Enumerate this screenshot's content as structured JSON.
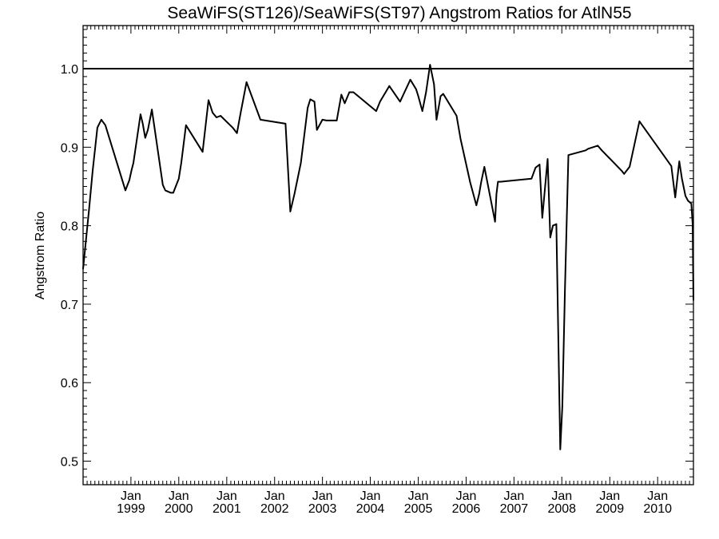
{
  "chart_data": {
    "type": "line",
    "title": "SeaWiFS(ST126)/SeaWiFS(ST97)  Angstrom Ratios for AtlN55",
    "xlabel": "",
    "ylabel": "Angstrom Ratio",
    "xlim": [
      "1998-01-01",
      "2010-10-01"
    ],
    "ylim": [
      0.47,
      1.055
    ],
    "yticks": [
      0.5,
      0.6,
      0.7,
      0.8,
      0.9,
      1.0
    ],
    "ytick_labels": [
      "0.5",
      "0.6",
      "0.7",
      "0.8",
      "0.9",
      "1.0"
    ],
    "xticks": [
      {
        "date": "1999-01-01",
        "month": "Jan",
        "year": "1999"
      },
      {
        "date": "2000-01-01",
        "month": "Jan",
        "year": "2000"
      },
      {
        "date": "2001-01-01",
        "month": "Jan",
        "year": "2001"
      },
      {
        "date": "2002-01-01",
        "month": "Jan",
        "year": "2002"
      },
      {
        "date": "2003-01-01",
        "month": "Jan",
        "year": "2003"
      },
      {
        "date": "2004-01-01",
        "month": "Jan",
        "year": "2004"
      },
      {
        "date": "2005-01-01",
        "month": "Jan",
        "year": "2005"
      },
      {
        "date": "2006-01-01",
        "month": "Jan",
        "year": "2006"
      },
      {
        "date": "2007-01-01",
        "month": "Jan",
        "year": "2007"
      },
      {
        "date": "2008-01-01",
        "month": "Jan",
        "year": "2008"
      },
      {
        "date": "2009-01-01",
        "month": "Jan",
        "year": "2009"
      },
      {
        "date": "2010-01-01",
        "month": "Jan",
        "year": "2010"
      }
    ],
    "minor_ticks": "monthly",
    "grid": false,
    "reference_lines": [
      {
        "axis": "y",
        "value": 1.0
      }
    ],
    "series": [
      {
        "x": [
          "1998-01-01",
          "1998-02-15",
          "1998-03-15",
          "1998-04-20",
          "1998-05-20",
          "1998-06-20",
          "1998-11-20",
          "1998-12-20",
          "1999-01-05",
          "1999-01-20",
          "1999-03-15",
          "1999-04-01",
          "1999-04-20",
          "1999-05-10",
          "1999-06-10",
          "1999-09-01",
          "1999-09-20",
          "1999-11-01",
          "1999-11-20",
          "2000-01-01",
          "2000-01-20",
          "2000-02-25",
          "2000-07-01",
          "2000-08-15",
          "2000-09-15",
          "2000-10-15",
          "2000-11-15",
          "2001-02-15",
          "2001-03-20",
          "2001-04-15",
          "2001-06-01",
          "2001-09-15",
          "2002-03-25",
          "2002-05-01",
          "2002-06-01",
          "2002-07-20",
          "2002-09-10",
          "2002-09-30",
          "2002-11-01",
          "2002-11-20",
          "2003-01-01",
          "2003-02-01",
          "2003-03-01",
          "2003-03-25",
          "2003-04-20",
          "2003-05-25",
          "2003-06-20",
          "2003-07-25",
          "2003-08-25",
          "2004-02-15",
          "2004-03-15",
          "2004-05-25",
          "2004-08-15",
          "2004-11-01",
          "2004-12-15",
          "2005-01-01",
          "2005-02-01",
          "2005-03-01",
          "2005-04-01",
          "2005-05-01",
          "2005-05-20",
          "2005-06-20",
          "2005-07-10",
          "2005-10-20",
          "2005-11-20",
          "2006-02-01",
          "2006-03-20",
          "2006-04-10",
          "2006-04-25",
          "2006-05-20",
          "2006-08-10",
          "2006-08-20",
          "2006-09-01",
          "2006-09-20",
          "2007-05-15",
          "2007-06-15",
          "2007-07-15",
          "2007-08-05",
          "2007-09-15",
          "2007-10-05",
          "2007-10-25",
          "2007-11-20",
          "2007-12-20",
          "2008-01-05",
          "2008-01-25",
          "2008-02-20",
          "2008-07-01",
          "2008-07-20",
          "2008-10-01",
          "2008-11-01",
          "2009-04-01",
          "2009-04-20",
          "2009-06-01",
          "2009-08-15",
          "2010-04-15",
          "2010-05-15",
          "2010-06-15",
          "2010-07-05",
          "2010-08-01",
          "2010-08-20",
          "2010-09-15",
          "2010-09-25",
          "2010-10-01"
        ],
        "y": [
          0.745,
          0.82,
          0.87,
          0.925,
          0.935,
          0.928,
          0.845,
          0.858,
          0.87,
          0.88,
          0.942,
          0.93,
          0.912,
          0.922,
          0.948,
          0.852,
          0.845,
          0.842,
          0.842,
          0.86,
          0.88,
          0.928,
          0.894,
          0.96,
          0.944,
          0.938,
          0.94,
          0.925,
          0.918,
          0.942,
          0.983,
          0.935,
          0.93,
          0.818,
          0.84,
          0.88,
          0.95,
          0.961,
          0.958,
          0.922,
          0.935,
          0.934,
          0.934,
          0.934,
          0.934,
          0.967,
          0.956,
          0.97,
          0.97,
          0.946,
          0.958,
          0.978,
          0.958,
          0.986,
          0.974,
          0.965,
          0.946,
          0.97,
          1.005,
          0.98,
          0.935,
          0.965,
          0.968,
          0.94,
          0.91,
          0.855,
          0.826,
          0.84,
          0.855,
          0.875,
          0.805,
          0.84,
          0.856,
          0.856,
          0.86,
          0.874,
          0.878,
          0.81,
          0.885,
          0.785,
          0.8,
          0.802,
          0.515,
          0.57,
          0.72,
          0.89,
          0.896,
          0.898,
          0.902,
          0.896,
          0.87,
          0.866,
          0.875,
          0.933,
          0.876,
          0.836,
          0.882,
          0.86,
          0.838,
          0.832,
          0.828,
          0.802,
          0.705
        ]
      }
    ]
  }
}
